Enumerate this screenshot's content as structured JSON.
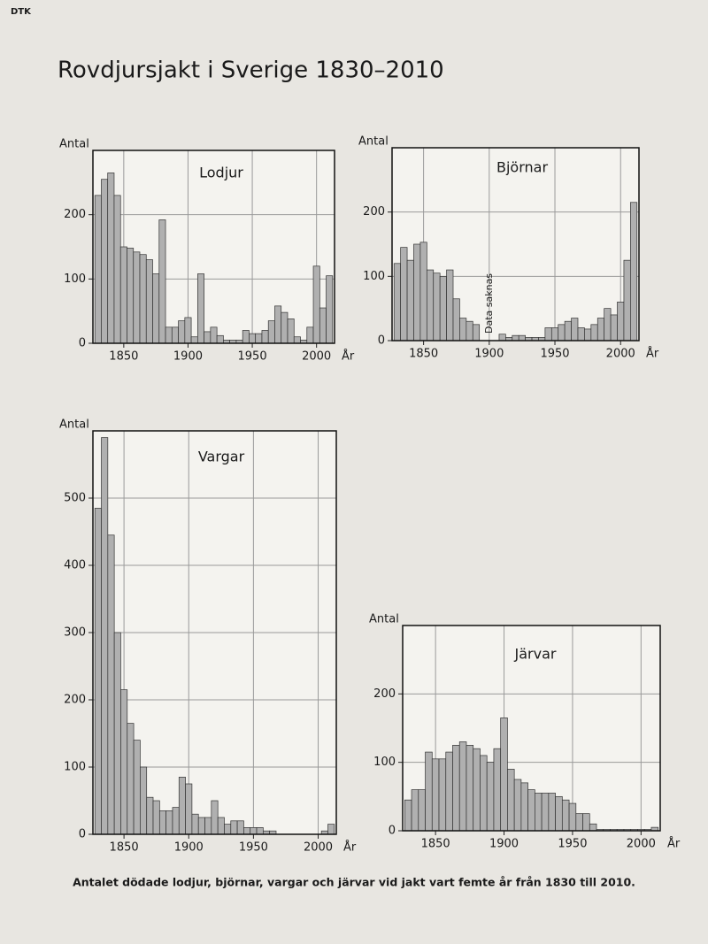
{
  "header": {
    "tag": "DTK",
    "title": "Rovdjursjakt i Sverige 1830–2010",
    "caption": "Antalet dödade lodjur, björnar, vargar och järvar vid jakt vart femte år från 1830 till 2010."
  },
  "chart_data": [
    {
      "type": "bar",
      "title": "Lodjur",
      "ylabel": "Antal",
      "xlabel": "År",
      "x": [
        1830,
        1835,
        1840,
        1845,
        1850,
        1855,
        1860,
        1865,
        1870,
        1875,
        1880,
        1885,
        1890,
        1895,
        1900,
        1905,
        1910,
        1915,
        1920,
        1925,
        1930,
        1935,
        1940,
        1945,
        1950,
        1955,
        1960,
        1965,
        1970,
        1975,
        1980,
        1985,
        1990,
        1995,
        2000,
        2005,
        2010
      ],
      "values": [
        230,
        255,
        265,
        230,
        150,
        148,
        142,
        138,
        130,
        108,
        192,
        25,
        25,
        35,
        40,
        10,
        108,
        18,
        25,
        12,
        5,
        5,
        5,
        20,
        15,
        15,
        20,
        35,
        58,
        48,
        38,
        10,
        5,
        25,
        120,
        55,
        105
      ],
      "color": "#b0b0b0",
      "xlim": [
        1826,
        2014
      ],
      "ylim": [
        0,
        300
      ],
      "xticks": [
        1850,
        1900,
        1950,
        2000
      ],
      "yticks": [
        0,
        100,
        200
      ],
      "grid": true
    },
    {
      "type": "bar",
      "title": "Björnar",
      "ylabel": "Antal",
      "xlabel": "År",
      "annotation": "Data saknas",
      "x": [
        1830,
        1835,
        1840,
        1845,
        1850,
        1855,
        1860,
        1865,
        1870,
        1875,
        1880,
        1885,
        1890,
        1895,
        1900,
        1905,
        1910,
        1915,
        1920,
        1925,
        1930,
        1935,
        1940,
        1945,
        1950,
        1955,
        1960,
        1965,
        1970,
        1975,
        1980,
        1985,
        1990,
        1995,
        2000,
        2005,
        2010
      ],
      "values": [
        120,
        145,
        125,
        150,
        153,
        110,
        105,
        100,
        110,
        65,
        35,
        30,
        25,
        null,
        null,
        null,
        10,
        5,
        8,
        8,
        5,
        5,
        5,
        20,
        20,
        25,
        30,
        35,
        20,
        18,
        25,
        35,
        50,
        40,
        60,
        125,
        215
      ],
      "color": "#b0b0b0",
      "xlim": [
        1826,
        2014
      ],
      "ylim": [
        0,
        300
      ],
      "xticks": [
        1850,
        1900,
        1950,
        2000
      ],
      "yticks": [
        0,
        100,
        200
      ],
      "grid": true
    },
    {
      "type": "bar",
      "title": "Vargar",
      "ylabel": "Antal",
      "xlabel": "År",
      "x": [
        1830,
        1835,
        1840,
        1845,
        1850,
        1855,
        1860,
        1865,
        1870,
        1875,
        1880,
        1885,
        1890,
        1895,
        1900,
        1905,
        1910,
        1915,
        1920,
        1925,
        1930,
        1935,
        1940,
        1945,
        1950,
        1955,
        1960,
        1965,
        1970,
        1975,
        1980,
        1985,
        1990,
        1995,
        2000,
        2005,
        2010
      ],
      "values": [
        485,
        590,
        445,
        300,
        215,
        165,
        140,
        100,
        55,
        50,
        35,
        35,
        40,
        85,
        75,
        30,
        25,
        25,
        50,
        25,
        15,
        20,
        20,
        10,
        10,
        10,
        5,
        5,
        0,
        0,
        0,
        0,
        0,
        0,
        0,
        5,
        15
      ],
      "color": "#b0b0b0",
      "xlim": [
        1826,
        2014
      ],
      "ylim": [
        0,
        600
      ],
      "xticks": [
        1850,
        1900,
        1950,
        2000
      ],
      "yticks": [
        0,
        100,
        200,
        300,
        400,
        500
      ],
      "grid": true
    },
    {
      "type": "bar",
      "title": "Järvar",
      "ylabel": "Antal",
      "xlabel": "År",
      "x": [
        1830,
        1835,
        1840,
        1845,
        1850,
        1855,
        1860,
        1865,
        1870,
        1875,
        1880,
        1885,
        1890,
        1895,
        1900,
        1905,
        1910,
        1915,
        1920,
        1925,
        1930,
        1935,
        1940,
        1945,
        1950,
        1955,
        1960,
        1965,
        1970,
        1975,
        1980,
        1985,
        1990,
        1995,
        2000,
        2005,
        2010
      ],
      "values": [
        45,
        60,
        60,
        115,
        105,
        105,
        115,
        125,
        130,
        125,
        120,
        110,
        100,
        120,
        165,
        90,
        75,
        70,
        60,
        55,
        55,
        55,
        50,
        45,
        40,
        25,
        25,
        10,
        2,
        2,
        2,
        2,
        2,
        2,
        2,
        2,
        5
      ],
      "color": "#b0b0b0",
      "xlim": [
        1826,
        2014
      ],
      "ylim": [
        0,
        300
      ],
      "xticks": [
        1850,
        1900,
        1950,
        2000
      ],
      "yticks": [
        0,
        100,
        200
      ],
      "grid": true
    }
  ]
}
